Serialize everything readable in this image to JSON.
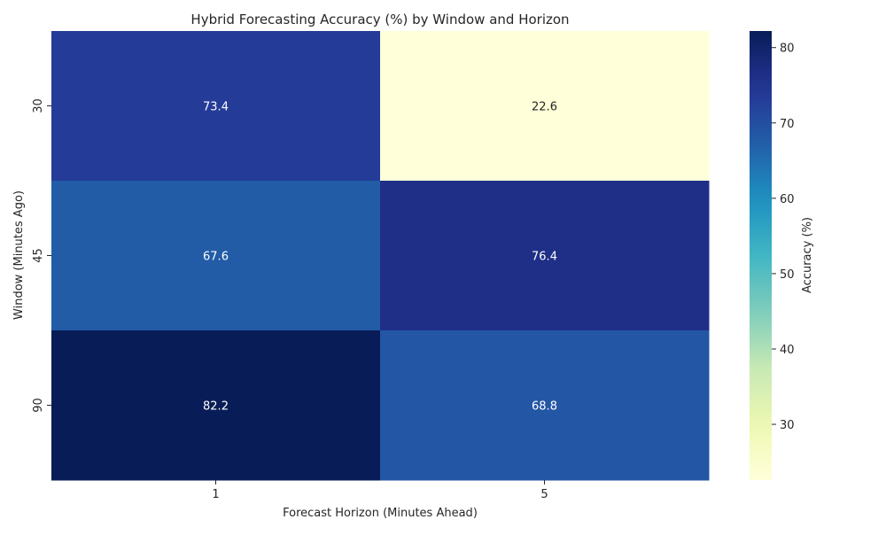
{
  "chart_data": {
    "type": "heatmap",
    "title": "Hybrid Forecasting Accuracy (%) by Window and Horizon",
    "xlabel": "Forecast Horizon (Minutes Ahead)",
    "ylabel": "Window (Minutes Ago)",
    "x_categories": [
      "1",
      "5"
    ],
    "y_categories": [
      "30",
      "45",
      "90"
    ],
    "values": [
      [
        73.4,
        22.6
      ],
      [
        67.6,
        76.4
      ],
      [
        82.2,
        68.8
      ]
    ],
    "colormap": "YlGnBu",
    "colorbar": {
      "label": "Accuracy (%)",
      "min": 22.6,
      "max": 82.2,
      "ticks": [
        "30",
        "40",
        "50",
        "60",
        "70",
        "80"
      ]
    },
    "grid": false,
    "legend": "colorbar-right"
  }
}
